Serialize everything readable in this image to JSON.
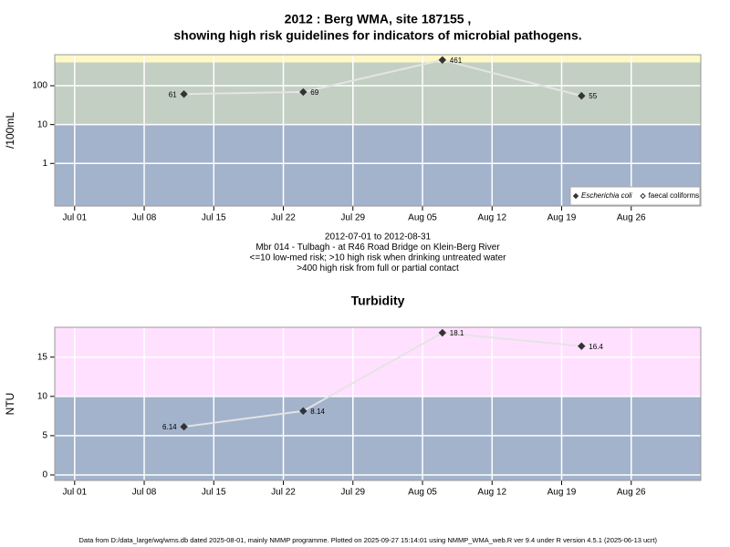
{
  "chart_data": [
    {
      "type": "line",
      "title": [
        "2012 : Berg WMA, site 187155 ,",
        "showing high risk guidelines for indicators of microbial pathogens."
      ],
      "subtitle": [
        "2012-07-01 to 2012-08-31",
        "Mbr 014 - Tulbagh - at R46 Road Bridge on Klein-Berg River",
        "<=10 low-med risk; >10 high risk when drinking untreated water",
        ">400 high risk from full or partial contact"
      ],
      "ylabel": "/100mL",
      "log_y": true,
      "x": [
        "2012-07-12",
        "2012-07-24",
        "2012-08-07",
        "2012-08-21"
      ],
      "xlim": [
        "2012-06-29",
        "2012-09-02"
      ],
      "xticks": [
        {
          "value": "2012-07-01",
          "label": "Jul 01"
        },
        {
          "value": "2012-07-08",
          "label": "Jul 08"
        },
        {
          "value": "2012-07-15",
          "label": "Jul 15"
        },
        {
          "value": "2012-07-22",
          "label": "Jul 22"
        },
        {
          "value": "2012-07-29",
          "label": "Jul 29"
        },
        {
          "value": "2012-08-05",
          "label": "Aug 05"
        },
        {
          "value": "2012-08-12",
          "label": "Aug 12"
        },
        {
          "value": "2012-08-19",
          "label": "Aug 19"
        },
        {
          "value": "2012-08-26",
          "label": "Aug 26"
        }
      ],
      "ylim": [
        0.08,
        630
      ],
      "yticks": [
        1,
        10,
        100
      ],
      "bands": {
        "thresholds": [
          10,
          400
        ],
        "colors": [
          "#a3b3cc",
          "#c3cfc3",
          "#fdf8c4"
        ]
      },
      "grid": true,
      "legend": "bottom-right",
      "series": [
        {
          "name": "Escherichia coli",
          "color": "#333333",
          "marker": "filled",
          "values": [
            61,
            69,
            461,
            55
          ]
        },
        {
          "name": "faecal coliforms",
          "color": "#333333",
          "marker": "hollow",
          "values": [
            null,
            null,
            null,
            null
          ]
        }
      ]
    },
    {
      "type": "line",
      "title": [
        "Turbidity"
      ],
      "ylabel": "NTU",
      "log_y": false,
      "x": [
        "2012-07-12",
        "2012-07-24",
        "2012-08-07",
        "2012-08-21"
      ],
      "xlim": [
        "2012-06-29",
        "2012-09-02"
      ],
      "xticks": [
        {
          "value": "2012-07-01",
          "label": "Jul 01"
        },
        {
          "value": "2012-07-08",
          "label": "Jul 08"
        },
        {
          "value": "2012-07-15",
          "label": "Jul 15"
        },
        {
          "value": "2012-07-22",
          "label": "Jul 22"
        },
        {
          "value": "2012-07-29",
          "label": "Jul 29"
        },
        {
          "value": "2012-08-05",
          "label": "Aug 05"
        },
        {
          "value": "2012-08-12",
          "label": "Aug 12"
        },
        {
          "value": "2012-08-19",
          "label": "Aug 19"
        },
        {
          "value": "2012-08-26",
          "label": "Aug 26"
        }
      ],
      "ylim": [
        -0.7,
        18.8
      ],
      "yticks": [
        0,
        5,
        10,
        15
      ],
      "bands": {
        "thresholds": [
          10
        ],
        "colors": [
          "#a3b3cc",
          "#ffe0ff"
        ]
      },
      "grid": true,
      "series": [
        {
          "name": "Turbidity",
          "color": "#333333",
          "marker": "filled",
          "values": [
            6.14,
            8.14,
            18.1,
            16.4
          ]
        }
      ]
    }
  ],
  "footer": "Data from D:/data_large/wq/wms.db dated 2025-08-01, mainly NMMP programme. Plotted on 2025-09-27 15:14:01 using NMMP_WMA_web.R ver 9.4 under R version 4.5.1 (2025-06-13 ucrt)"
}
